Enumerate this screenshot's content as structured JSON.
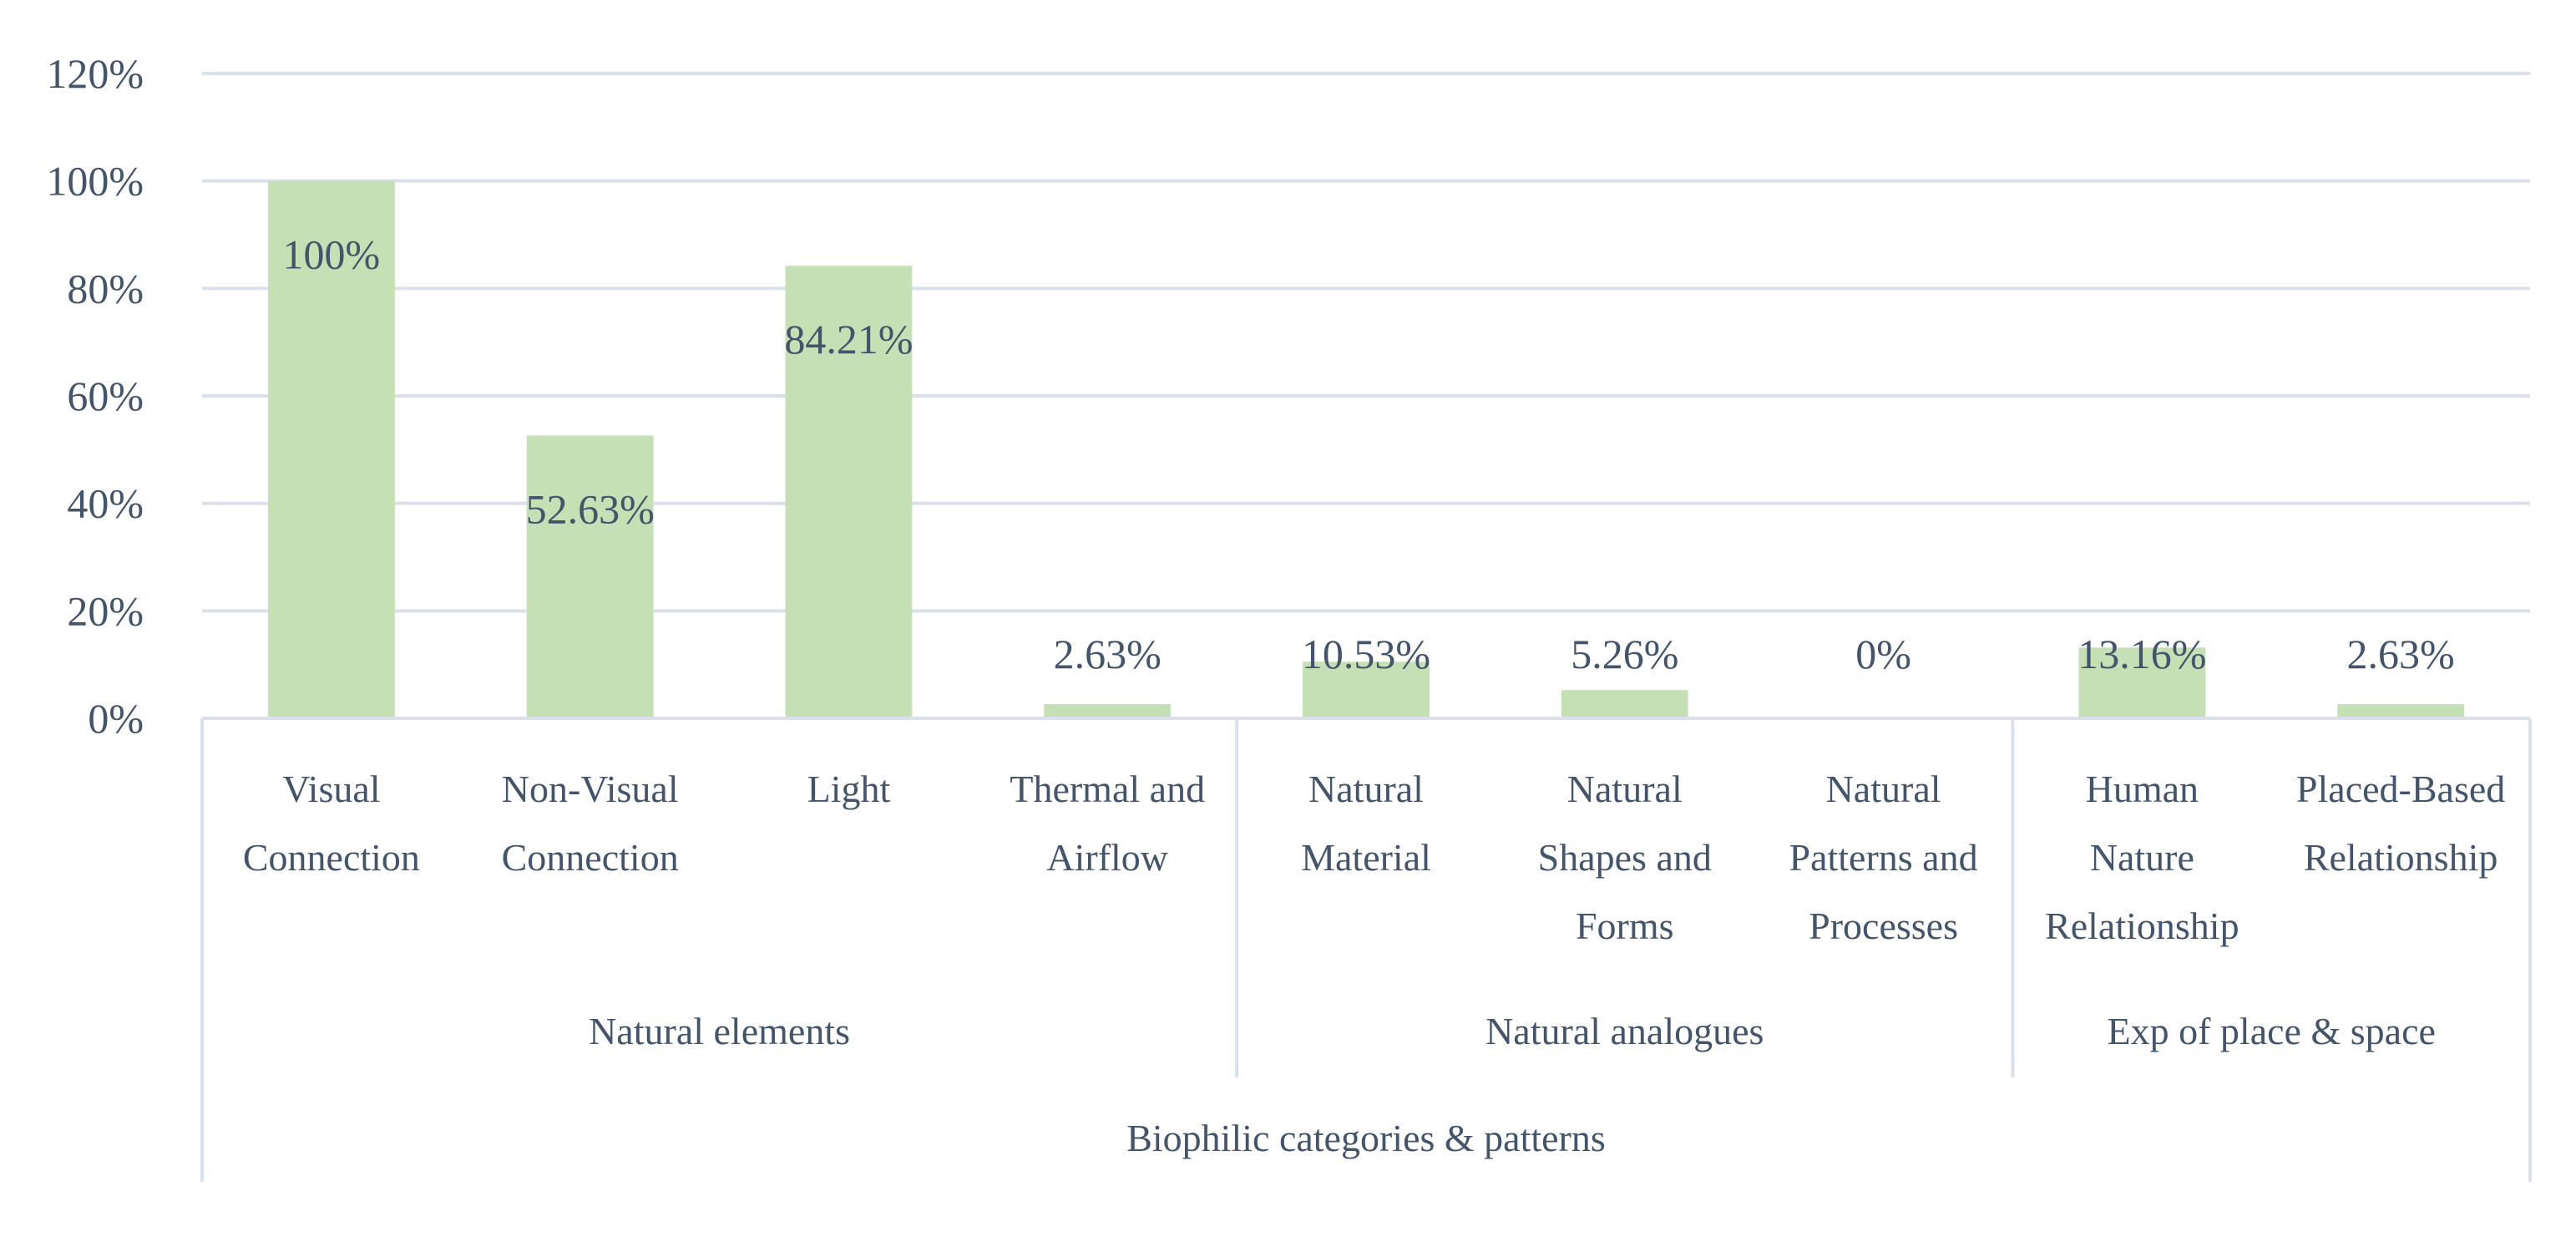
{
  "chart_data": {
    "type": "bar",
    "categories": [
      [
        "Visual",
        "Connection"
      ],
      [
        "Non-Visual",
        "Connection"
      ],
      [
        "Light"
      ],
      [
        "Thermal and",
        "Airflow"
      ],
      [
        "Natural",
        "Material"
      ],
      [
        "Natural",
        "Shapes and",
        "Forms"
      ],
      [
        "Natural",
        "Patterns and",
        "Processes"
      ],
      [
        "Human",
        "Nature",
        "Relationship"
      ],
      [
        "Placed-Based",
        "Relationship"
      ]
    ],
    "values": [
      100,
      52.63,
      84.21,
      2.63,
      10.53,
      5.26,
      0,
      13.16,
      2.63
    ],
    "data_labels": [
      "100%",
      "52.63%",
      "84.21%",
      "2.63%",
      "10.53%",
      "5.26%",
      "0%",
      "13.16%",
      "2.63%"
    ],
    "groups": [
      {
        "label": "Natural elements",
        "start": 0,
        "end": 3
      },
      {
        "label": "Natural analogues",
        "start": 4,
        "end": 6
      },
      {
        "label": "Exp of place & space",
        "start": 7,
        "end": 8
      }
    ],
    "xlabel": "Biophilic categories & patterns",
    "ylim": [
      0,
      120
    ],
    "yticks": [
      0,
      20,
      40,
      60,
      80,
      100,
      120
    ],
    "ytick_labels": [
      "0%",
      "20%",
      "40%",
      "60%",
      "80%",
      "100%",
      "120%"
    ],
    "grid": true,
    "colors": {
      "bar": "#c5e0b4",
      "grid": "#d9e1ea",
      "text": "#44546a"
    }
  }
}
